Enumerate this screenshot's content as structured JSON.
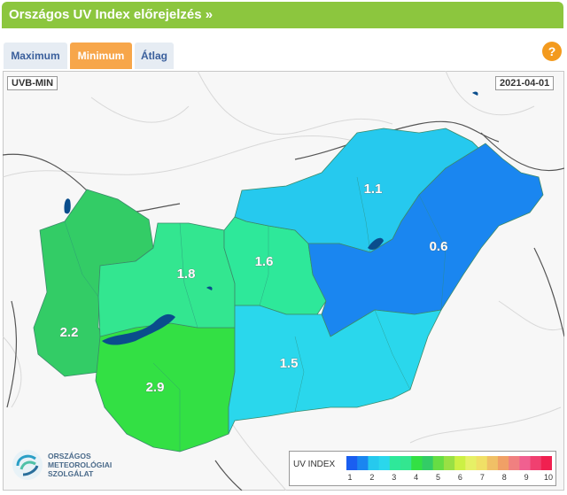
{
  "header": {
    "title": "Országos UV Index előrejelzés »"
  },
  "tabs": [
    {
      "label": "Maximum"
    },
    {
      "label": "Minimum"
    },
    {
      "label": "Átlag"
    }
  ],
  "help_label": "?",
  "map": {
    "parameter": "UVB-MIN",
    "date": "2021-04-01",
    "regions": [
      {
        "id": "west",
        "value": "2.2",
        "color": "#33cc66"
      },
      {
        "id": "southwest",
        "value": "2.9",
        "color": "#33e044"
      },
      {
        "id": "central-west",
        "value": "1.8",
        "color": "#33e690"
      },
      {
        "id": "central",
        "value": "1.6",
        "color": "#2ee89a"
      },
      {
        "id": "north",
        "value": "1.1",
        "color": "#26c9ee"
      },
      {
        "id": "northeast",
        "value": "0.6",
        "color": "#1a86f0"
      },
      {
        "id": "great-plain",
        "value": "1.5",
        "color": "#2ad7ec"
      }
    ]
  },
  "logo": {
    "line1": "ORSZÁGOS",
    "line2": "METEOROLÓGIAI",
    "line3": "SZOLGÁLAT"
  },
  "legend": {
    "title": "UV INDEX",
    "ticks": [
      "1",
      "2",
      "3",
      "4",
      "5",
      "6",
      "7",
      "8",
      "9",
      "10"
    ],
    "colors": [
      "#1a5ef0",
      "#1a86f0",
      "#26c9ee",
      "#2ad7ec",
      "#2ee89a",
      "#33e690",
      "#33e044",
      "#33cc66",
      "#66dd44",
      "#99e044",
      "#ccf044",
      "#e6f066",
      "#f0e066",
      "#f0c066",
      "#f0a066",
      "#f08080",
      "#f06090",
      "#f04070",
      "#f02050"
    ]
  }
}
